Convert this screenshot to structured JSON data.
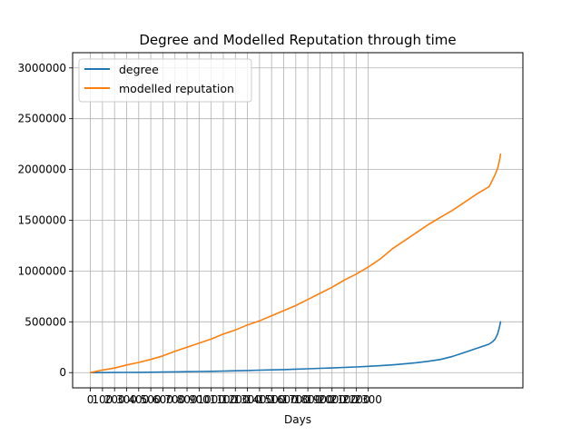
{
  "chart_data": {
    "type": "line",
    "title": "Degree and Modelled Reputation through time",
    "xlabel": "Days",
    "ylabel": "",
    "xlim": [
      -147,
      3580
    ],
    "ylim": [
      -150000,
      3150000
    ],
    "grid": true,
    "legend_position": "top-left",
    "x_ticks": [
      0,
      100,
      200,
      300,
      400,
      500,
      600,
      700,
      800,
      900,
      1000,
      1100,
      1200,
      1300,
      1400,
      1500,
      1600,
      1700,
      1800,
      1900,
      2000,
      2100,
      2200,
      2300
    ],
    "x_tick_labels": [
      "0",
      "100",
      "200",
      "300",
      "400",
      "500",
      "600",
      "700",
      "800",
      "900",
      "1000",
      "1100",
      "1200",
      "1300",
      "1400",
      "1500",
      "1600",
      "1700",
      "1800",
      "1900",
      "2000",
      "2100",
      "2200",
      "2300"
    ],
    "y_ticks": [
      0,
      500000,
      1000000,
      1500000,
      2000000,
      2500000,
      3000000
    ],
    "y_tick_labels": [
      "0",
      "500000",
      "1000000",
      "1500000",
      "2000000",
      "2500000",
      "3000000"
    ],
    "series": [
      {
        "name": "degree",
        "color": "#1f77b4",
        "x": [
          0,
          100,
          200,
          300,
          400,
          500,
          600,
          700,
          800,
          900,
          1000,
          1100,
          1200,
          1300,
          1400,
          1500,
          1600,
          1700,
          1800,
          1900,
          2000,
          2100,
          2200,
          2300,
          2400,
          2500,
          2600,
          2700,
          2800,
          2900,
          3000,
          3100,
          3200,
          3300,
          3330,
          3350,
          3370,
          3385,
          3395
        ],
        "y": [
          0,
          600,
          1200,
          2000,
          3000,
          4000,
          5500,
          7000,
          9000,
          11000,
          13000,
          15500,
          18000,
          21000,
          24000,
          27000,
          30000,
          34000,
          38000,
          42000,
          46000,
          51000,
          56000,
          62000,
          68000,
          76000,
          86000,
          98000,
          112000,
          130000,
          160000,
          200000,
          240000,
          280000,
          305000,
          330000,
          380000,
          440000,
          500000
        ]
      },
      {
        "name": "modelled reputation",
        "color": "#ff7f0e",
        "x": [
          0,
          100,
          200,
          300,
          400,
          500,
          600,
          700,
          800,
          900,
          1000,
          1100,
          1200,
          1300,
          1400,
          1500,
          1600,
          1700,
          1800,
          1900,
          2000,
          2100,
          2200,
          2300,
          2400,
          2500,
          2600,
          2700,
          2800,
          2900,
          3000,
          3100,
          3200,
          3300,
          3330,
          3350,
          3370,
          3385,
          3395
        ],
        "y": [
          0,
          25000,
          45000,
          75000,
          100000,
          130000,
          165000,
          210000,
          250000,
          290000,
          330000,
          380000,
          420000,
          470000,
          510000,
          560000,
          610000,
          660000,
          720000,
          780000,
          840000,
          910000,
          970000,
          1040000,
          1120000,
          1220000,
          1300000,
          1380000,
          1460000,
          1530000,
          1600000,
          1680000,
          1760000,
          1830000,
          1900000,
          1950000,
          2010000,
          2080000,
          2150000
        ]
      }
    ]
  }
}
